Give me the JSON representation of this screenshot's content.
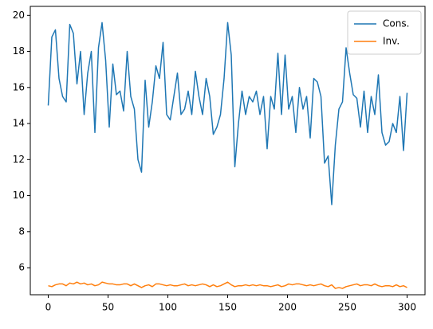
{
  "chart_data": {
    "type": "line",
    "x": [
      0,
      3,
      6,
      9,
      12,
      15,
      18,
      21,
      24,
      27,
      30,
      33,
      36,
      39,
      42,
      45,
      48,
      51,
      54,
      57,
      60,
      63,
      66,
      69,
      72,
      75,
      78,
      81,
      84,
      87,
      90,
      93,
      96,
      99,
      102,
      105,
      108,
      111,
      114,
      117,
      120,
      123,
      126,
      129,
      132,
      135,
      138,
      141,
      144,
      147,
      150,
      153,
      156,
      159,
      162,
      165,
      168,
      171,
      174,
      177,
      180,
      183,
      186,
      189,
      192,
      195,
      198,
      201,
      204,
      207,
      210,
      213,
      216,
      219,
      222,
      225,
      228,
      231,
      234,
      237,
      240,
      243,
      246,
      249,
      252,
      255,
      258,
      261,
      264,
      267,
      270,
      273,
      276,
      279,
      282,
      285,
      288,
      291,
      294,
      297,
      300
    ],
    "series": [
      {
        "name": "Cons.",
        "color": "#1f77b4",
        "values": [
          15,
          18.8,
          19.2,
          16.5,
          15.5,
          15.2,
          19.5,
          19,
          16.2,
          18,
          14.5,
          16.8,
          18,
          13.5,
          18.2,
          19.6,
          17.5,
          13.8,
          17.3,
          15.6,
          15.8,
          14.7,
          18,
          15.5,
          14.8,
          12,
          11.3,
          16.4,
          13.8,
          15.2,
          17.2,
          16.5,
          18.5,
          14.5,
          14.2,
          15.5,
          16.8,
          14.5,
          14.8,
          15.8,
          14.5,
          16.9,
          15.5,
          14.5,
          16.5,
          15.5,
          13.4,
          13.8,
          14.5,
          16.5,
          19.6,
          17.8,
          11.6,
          14,
          15.8,
          14.5,
          15.5,
          15.2,
          15.8,
          14.5,
          15.5,
          12.6,
          15.5,
          14.8,
          17.9,
          14.5,
          17.8,
          14.8,
          15.5,
          13.5,
          16,
          14.8,
          15.5,
          13.2,
          16.5,
          16.3,
          15.5,
          11.8,
          12.2,
          9.5,
          12.8,
          14.8,
          15.2,
          18.2,
          16.8,
          15.6,
          15.4,
          13.8,
          15.8,
          13.5,
          15.5,
          14.5,
          16.7,
          13.5,
          12.8,
          13,
          14,
          13.5,
          15.5,
          12.5,
          15.7
        ]
      },
      {
        "name": "Inv.",
        "color": "#ff7f0e",
        "values": [
          5.0,
          4.95,
          5.05,
          5.1,
          5.1,
          5.0,
          5.15,
          5.1,
          5.2,
          5.1,
          5.15,
          5.05,
          5.1,
          5.0,
          5.05,
          5.2,
          5.15,
          5.1,
          5.1,
          5.05,
          5.05,
          5.1,
          5.1,
          5.0,
          5.1,
          5.0,
          4.9,
          5.0,
          5.05,
          4.95,
          5.1,
          5.1,
          5.05,
          5.0,
          5.05,
          5.0,
          5.0,
          5.05,
          5.1,
          5.0,
          5.05,
          5.0,
          5.05,
          5.1,
          5.05,
          4.95,
          5.05,
          4.95,
          5.0,
          5.1,
          5.2,
          5.05,
          4.95,
          5.0,
          5.0,
          5.05,
          5.0,
          5.05,
          5.0,
          5.05,
          5.0,
          5.0,
          4.95,
          5.0,
          5.05,
          4.95,
          5.0,
          5.1,
          5.05,
          5.1,
          5.1,
          5.05,
          5.0,
          5.05,
          5.0,
          5.05,
          5.1,
          5.0,
          4.95,
          5.05,
          4.85,
          4.9,
          4.85,
          4.95,
          5.0,
          5.05,
          5.1,
          5.0,
          5.05,
          5.05,
          5.0,
          5.1,
          5.0,
          4.95,
          5.0,
          5.0,
          4.95,
          5.05,
          4.95,
          5.0,
          4.9
        ]
      }
    ],
    "xlim": [
      -15,
      315
    ],
    "xticks": [
      0,
      50,
      100,
      150,
      200,
      250,
      300
    ],
    "ylim": [
      4.5,
      20.5
    ],
    "yticks": [
      6,
      8,
      10,
      12,
      14,
      16,
      18,
      20
    ],
    "grid": false,
    "legend": "upper right"
  }
}
